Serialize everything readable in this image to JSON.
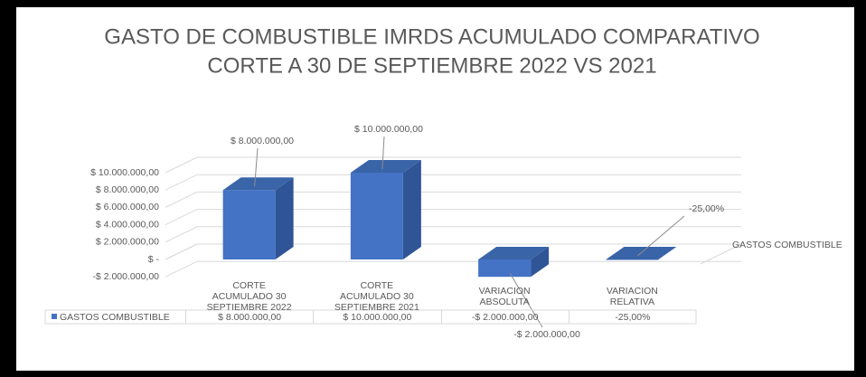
{
  "chart_data": {
    "type": "bar3d",
    "title": "GASTO DE COMBUSTIBLE IMRDS ACUMULADO COMPARATIVO",
    "subtitle": "CORTE A  30 DE SEPTIEMBRE 2022 VS 2021",
    "categories": [
      "CORTE ACUMULADO 30 SEPTIEMBRE 2022",
      "CORTE ACUMULADO 30 SEPTIEMBRE 2021",
      "VARIACION ABSOLUTA",
      "VARIACION RELATIVA"
    ],
    "series": [
      {
        "name": "GASTOS COMBUSTIBLE",
        "color": "#4472c4",
        "values": [
          8000000,
          10000000,
          -2000000,
          -25
        ],
        "value_labels": [
          "$ 8.000.000,00",
          "$ 10.000.000,00",
          "-$ 2.000.000,00",
          "-25,00%"
        ]
      }
    ],
    "ylim": [
      -2000000,
      10000000
    ],
    "yticks": [
      {
        "value": -2000000,
        "label": "-$ 2.000.000,00"
      },
      {
        "value": 0,
        "label": "$ -"
      },
      {
        "value": 2000000,
        "label": "$ 2.000.000,00"
      },
      {
        "value": 4000000,
        "label": "$ 4.000.000,00"
      },
      {
        "value": 6000000,
        "label": "$ 6.000.000,00"
      },
      {
        "value": 8000000,
        "label": "$ 8.000.000,00"
      },
      {
        "value": 10000000,
        "label": "$ 10.000.000,00"
      }
    ],
    "grid": true,
    "legend": "right",
    "data_table": true
  }
}
